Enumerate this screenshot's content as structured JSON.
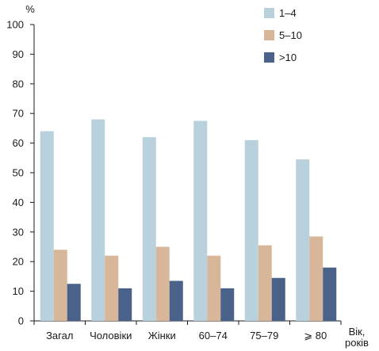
{
  "chart_data": {
    "type": "bar",
    "ylabel": "%",
    "xlabel": "Вік, років",
    "xlabel_lines": [
      "Вік,",
      "років"
    ],
    "ylim": [
      0,
      100
    ],
    "yticks": [
      "0",
      "10",
      "20",
      "30",
      "40",
      "50",
      "60",
      "70",
      "80",
      "90",
      "100"
    ],
    "grid": false,
    "legend_position": "top-right",
    "categories": [
      "Загал",
      "Чоловіки",
      "Жінки",
      "60–74",
      "75–79",
      "⩾ 80"
    ],
    "series": [
      {
        "name": "1–4",
        "color": "#b8d1dc",
        "values": [
          64,
          68,
          62,
          67.5,
          61,
          54.5
        ]
      },
      {
        "name": "5–10",
        "color": "#d8b699",
        "values": [
          24,
          22,
          25,
          22,
          25.5,
          28.5
        ]
      },
      {
        "name": ">10",
        "color": "#4a6189",
        "values": [
          12.5,
          11,
          13.5,
          11,
          14.5,
          18
        ]
      }
    ]
  }
}
